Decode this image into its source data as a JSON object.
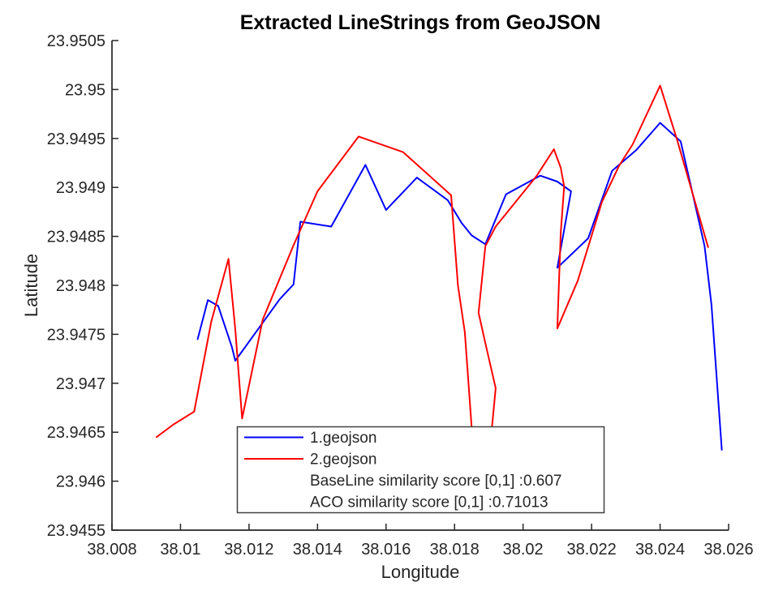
{
  "figure": {
    "background": "#ffffff",
    "axis_color": "#262626"
  },
  "chart_data": {
    "type": "line",
    "title": "Extracted LineStrings from GeoJSON",
    "xlabel": "Longitude",
    "ylabel": "Latitude",
    "xlim": [
      38.008,
      38.026
    ],
    "ylim": [
      23.9455,
      23.9505
    ],
    "xticks": [
      "38.008",
      "38.01",
      "38.012",
      "38.014",
      "38.016",
      "38.018",
      "38.02",
      "38.022",
      "38.024",
      "38.026"
    ],
    "yticks": [
      "23.9455",
      "23.946",
      "23.9465",
      "23.947",
      "23.9475",
      "23.948",
      "23.9485",
      "23.949",
      "23.9495",
      "23.95",
      "23.9505"
    ],
    "grid": false,
    "legend": {
      "position": "south-inside",
      "entries": [
        {
          "label": "1.geojson",
          "color": "#0000ff",
          "has_line": true
        },
        {
          "label": "2.geojson",
          "color": "#ff0000",
          "has_line": true
        },
        {
          "label": "BaseLine similarity score [0,1] :0.607",
          "has_line": false
        },
        {
          "label": "ACO similarity score [0,1] :0.71013",
          "has_line": false
        }
      ]
    },
    "series": [
      {
        "name": "1.geojson",
        "color": "#0000ff",
        "points": [
          [
            38.0105,
            23.94745
          ],
          [
            38.0108,
            23.94785
          ],
          [
            38.0111,
            23.94779
          ],
          [
            38.0115,
            23.94737
          ],
          [
            38.0116,
            23.94723
          ],
          [
            38.0123,
            23.94757
          ],
          [
            38.0129,
            23.94786
          ],
          [
            38.0133,
            23.94801
          ],
          [
            38.0135,
            23.94865
          ],
          [
            38.0144,
            23.9486
          ],
          [
            38.0154,
            23.94923
          ],
          [
            38.016,
            23.94877
          ],
          [
            38.0169,
            23.9491
          ],
          [
            38.0178,
            23.94887
          ],
          [
            38.0182,
            23.94864
          ],
          [
            38.0185,
            23.94851
          ],
          [
            38.0189,
            23.94842
          ],
          [
            38.0195,
            23.94893
          ],
          [
            38.0205,
            23.94912
          ],
          [
            38.021,
            23.94906
          ],
          [
            38.0214,
            23.94896
          ],
          [
            38.021,
            23.94818
          ],
          [
            38.0219,
            23.94848
          ],
          [
            38.0226,
            23.94917
          ],
          [
            38.0233,
            23.94938
          ],
          [
            38.024,
            23.94966
          ],
          [
            38.0246,
            23.94947
          ],
          [
            38.0249,
            23.94901
          ],
          [
            38.0253,
            23.9484
          ],
          [
            38.0255,
            23.9478
          ],
          [
            38.0258,
            23.94632
          ]
        ]
      },
      {
        "name": "2.geojson",
        "color": "#ff0000",
        "points": [
          [
            38.0093,
            23.94645
          ],
          [
            38.0098,
            23.94658
          ],
          [
            38.0104,
            23.94671
          ],
          [
            38.0109,
            23.94763
          ],
          [
            38.0114,
            23.94827
          ],
          [
            38.0116,
            23.94755
          ],
          [
            38.0118,
            23.94664
          ],
          [
            38.0124,
            23.94765
          ],
          [
            38.0133,
            23.94841
          ],
          [
            38.014,
            23.94896
          ],
          [
            38.0152,
            23.94952
          ],
          [
            38.0165,
            23.94936
          ],
          [
            38.0179,
            23.94892
          ],
          [
            38.0181,
            23.948
          ],
          [
            38.0183,
            23.94752
          ],
          [
            38.0185,
            23.94655
          ],
          [
            38.0187,
            23.9462
          ],
          [
            38.019,
            23.94638
          ],
          [
            38.0191,
            23.94658
          ],
          [
            38.0192,
            23.94695
          ],
          [
            38.0189,
            23.94741
          ],
          [
            38.0187,
            23.94772
          ],
          [
            38.0188,
            23.94806
          ],
          [
            38.0189,
            23.9484
          ],
          [
            38.0192,
            23.9486
          ],
          [
            38.0204,
            23.94912
          ],
          [
            38.0209,
            23.94939
          ],
          [
            38.0211,
            23.9492
          ],
          [
            38.0212,
            23.94901
          ],
          [
            38.0211,
            23.94854
          ],
          [
            38.021,
            23.94756
          ],
          [
            38.0216,
            23.94805
          ],
          [
            38.0223,
            23.94885
          ],
          [
            38.0228,
            23.94922
          ],
          [
            38.0232,
            23.94944
          ],
          [
            38.024,
            23.95004
          ],
          [
            38.0245,
            23.94948
          ],
          [
            38.0254,
            23.94839
          ]
        ]
      }
    ]
  }
}
